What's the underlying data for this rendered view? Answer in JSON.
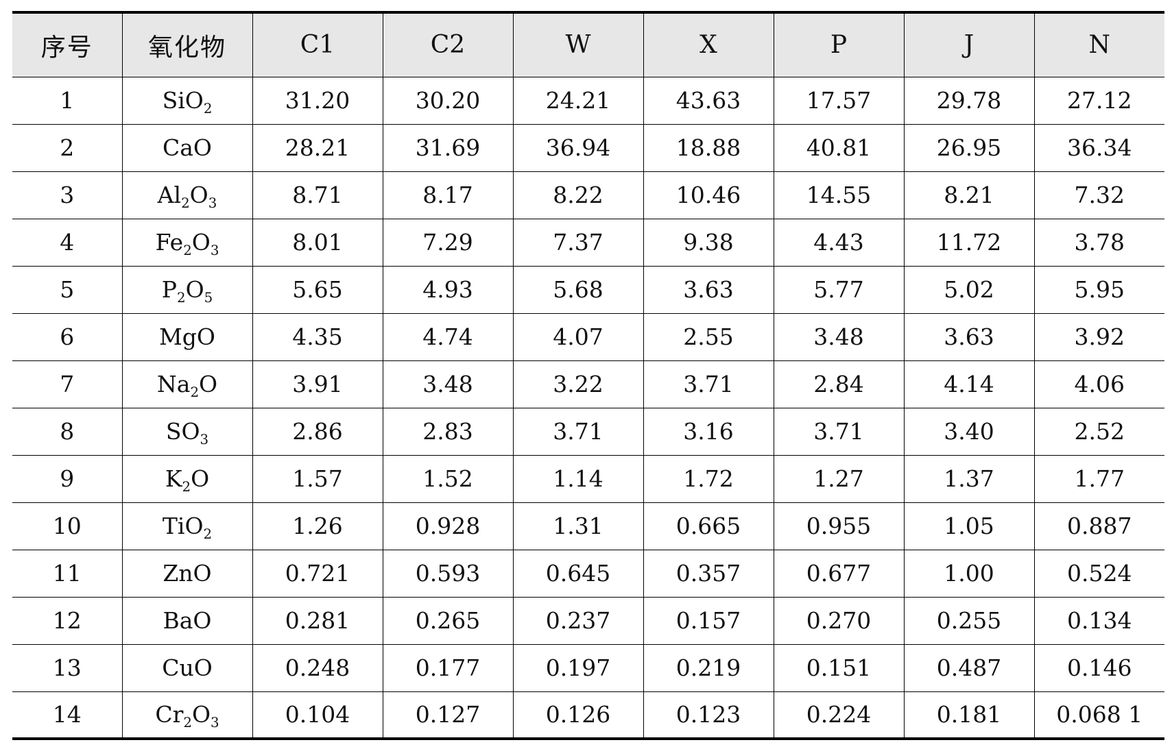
{
  "table": {
    "headers": [
      "序号",
      "氧化物",
      "C1",
      "C2",
      "W",
      "X",
      "P",
      "J",
      "N"
    ],
    "rows": [
      {
        "idx": "1",
        "oxide": [
          {
            "t": "SiO"
          },
          {
            "s": "2"
          }
        ],
        "values": [
          "31.20",
          "30.20",
          "24.21",
          "43.63",
          "17.57",
          "29.78",
          "27.12"
        ]
      },
      {
        "idx": "2",
        "oxide": [
          {
            "t": "CaO"
          }
        ],
        "values": [
          "28.21",
          "31.69",
          "36.94",
          "18.88",
          "40.81",
          "26.95",
          "36.34"
        ]
      },
      {
        "idx": "3",
        "oxide": [
          {
            "t": "Al"
          },
          {
            "s": "2"
          },
          {
            "t": "O"
          },
          {
            "s": "3"
          }
        ],
        "values": [
          "8.71",
          "8.17",
          "8.22",
          "10.46",
          "14.55",
          "8.21",
          "7.32"
        ]
      },
      {
        "idx": "4",
        "oxide": [
          {
            "t": "Fe"
          },
          {
            "s": "2"
          },
          {
            "t": "O"
          },
          {
            "s": "3"
          }
        ],
        "values": [
          "8.01",
          "7.29",
          "7.37",
          "9.38",
          "4.43",
          "11.72",
          "3.78"
        ]
      },
      {
        "idx": "5",
        "oxide": [
          {
            "t": "P"
          },
          {
            "s": "2"
          },
          {
            "t": "O"
          },
          {
            "s": "5"
          }
        ],
        "values": [
          "5.65",
          "4.93",
          "5.68",
          "3.63",
          "5.77",
          "5.02",
          "5.95"
        ]
      },
      {
        "idx": "6",
        "oxide": [
          {
            "t": "MgO"
          }
        ],
        "values": [
          "4.35",
          "4.74",
          "4.07",
          "2.55",
          "3.48",
          "3.63",
          "3.92"
        ]
      },
      {
        "idx": "7",
        "oxide": [
          {
            "t": "Na"
          },
          {
            "s": "2"
          },
          {
            "t": "O"
          }
        ],
        "values": [
          "3.91",
          "3.48",
          "3.22",
          "3.71",
          "2.84",
          "4.14",
          "4.06"
        ]
      },
      {
        "idx": "8",
        "oxide": [
          {
            "t": "SO"
          },
          {
            "s": "3"
          }
        ],
        "values": [
          "2.86",
          "2.83",
          "3.71",
          "3.16",
          "3.71",
          "3.40",
          "2.52"
        ]
      },
      {
        "idx": "9",
        "oxide": [
          {
            "t": "K"
          },
          {
            "s": "2"
          },
          {
            "t": "O"
          }
        ],
        "values": [
          "1.57",
          "1.52",
          "1.14",
          "1.72",
          "1.27",
          "1.37",
          "1.77"
        ]
      },
      {
        "idx": "10",
        "oxide": [
          {
            "t": "TiO"
          },
          {
            "s": "2"
          }
        ],
        "values": [
          "1.26",
          "0.928",
          "1.31",
          "0.665",
          "0.955",
          "1.05",
          "0.887"
        ]
      },
      {
        "idx": "11",
        "oxide": [
          {
            "t": "ZnO"
          }
        ],
        "values": [
          "0.721",
          "0.593",
          "0.645",
          "0.357",
          "0.677",
          "1.00",
          "0.524"
        ]
      },
      {
        "idx": "12",
        "oxide": [
          {
            "t": "BaO"
          }
        ],
        "values": [
          "0.281",
          "0.265",
          "0.237",
          "0.157",
          "0.270",
          "0.255",
          "0.134"
        ]
      },
      {
        "idx": "13",
        "oxide": [
          {
            "t": "CuO"
          }
        ],
        "values": [
          "0.248",
          "0.177",
          "0.197",
          "0.219",
          "0.151",
          "0.487",
          "0.146"
        ]
      },
      {
        "idx": "14",
        "oxide": [
          {
            "t": "Cr"
          },
          {
            "s": "2"
          },
          {
            "t": "O"
          },
          {
            "s": "3"
          }
        ],
        "values": [
          "0.104",
          "0.127",
          "0.126",
          "0.123",
          "0.224",
          "0.181",
          "0.068 1"
        ]
      }
    ]
  },
  "colors": {
    "header_background": "#e7e7e7",
    "rule": "#000000",
    "text": "#111111"
  }
}
